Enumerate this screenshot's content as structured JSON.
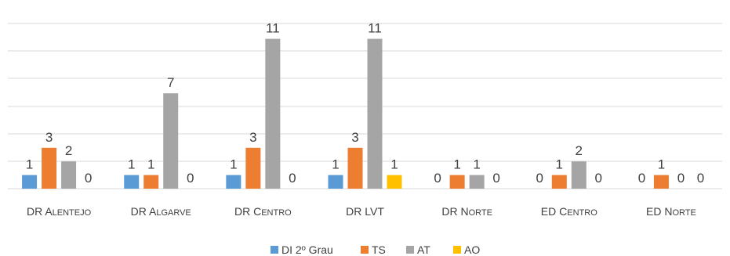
{
  "chart_data": {
    "type": "bar",
    "title": "",
    "xlabel": "",
    "ylabel": "",
    "categories": [
      {
        "first": "DR ",
        "rest": "Alentejo"
      },
      {
        "first": "DR ",
        "rest": "Algarve"
      },
      {
        "first": "DR ",
        "rest": "Centro"
      },
      {
        "first": "DR LVT",
        "rest": ""
      },
      {
        "first": "DR ",
        "rest": "Norte"
      },
      {
        "first": "ED ",
        "rest": "Centro"
      },
      {
        "first": "ED ",
        "rest": "Norte"
      }
    ],
    "series": [
      {
        "name": "DI 2º Grau",
        "color": "#5B9BD5",
        "values": [
          1,
          1,
          1,
          1,
          0,
          0,
          0
        ]
      },
      {
        "name": "TS",
        "color": "#ED7D31",
        "values": [
          3,
          1,
          3,
          3,
          1,
          1,
          1
        ]
      },
      {
        "name": "AT",
        "color": "#A5A5A5",
        "values": [
          2,
          7,
          11,
          11,
          1,
          2,
          0
        ]
      },
      {
        "name": "AO",
        "color": "#FFC000",
        "values": [
          0,
          0,
          0,
          1,
          0,
          0,
          0
        ]
      }
    ],
    "ylim": [
      0,
      12
    ],
    "grid": true,
    "legend": "bottom",
    "data_labels": true
  }
}
